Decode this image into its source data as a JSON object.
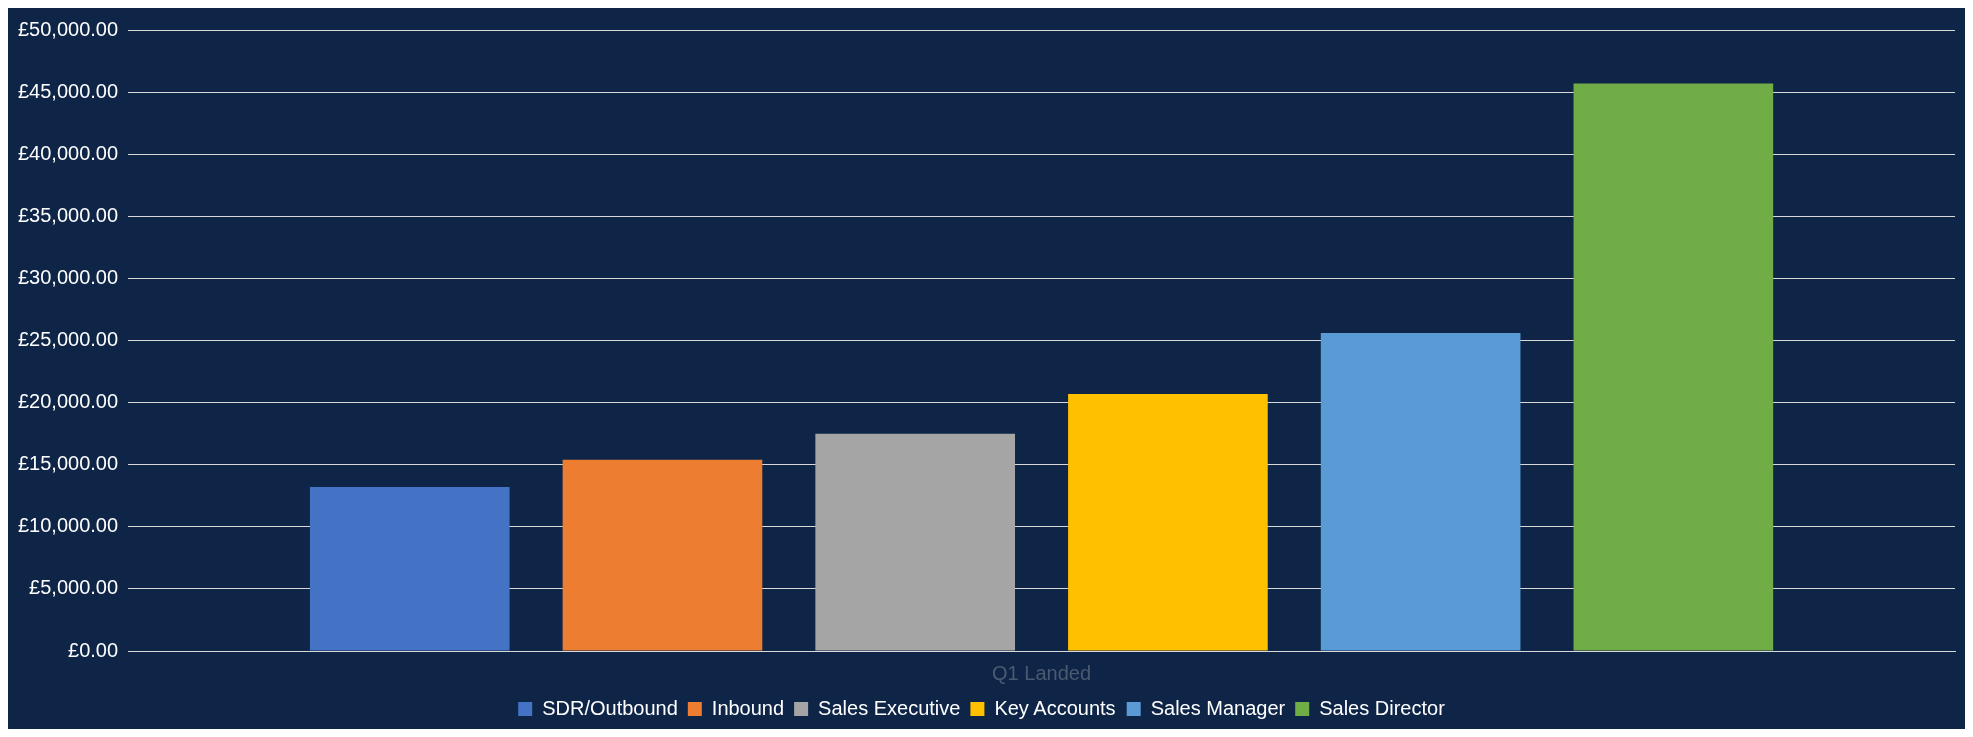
{
  "chart_data": {
    "type": "bar",
    "categories": [
      "Q1 Landed"
    ],
    "series": [
      {
        "name": "SDR/Outbound",
        "color": "#4472c4",
        "values": [
          13200
        ]
      },
      {
        "name": "Inbound",
        "color": "#ed7d31",
        "values": [
          15400
        ]
      },
      {
        "name": "Sales Executive",
        "color": "#a5a5a5",
        "values": [
          17500
        ]
      },
      {
        "name": "Key Accounts",
        "color": "#ffc000",
        "values": [
          20700
        ]
      },
      {
        "name": "Sales Manager",
        "color": "#5b9bd5",
        "values": [
          25600
        ]
      },
      {
        "name": "Sales Director",
        "color": "#70ad47",
        "values": [
          45700
        ]
      }
    ],
    "ylim": [
      0,
      50000
    ],
    "yticks": [
      {
        "value": 0,
        "label": "£0.00"
      },
      {
        "value": 5000,
        "label": "£5,000.00"
      },
      {
        "value": 10000,
        "label": "£10,000.00"
      },
      {
        "value": 15000,
        "label": "£15,000.00"
      },
      {
        "value": 20000,
        "label": "£20,000.00"
      },
      {
        "value": 25000,
        "label": "£25,000.00"
      },
      {
        "value": 30000,
        "label": "£30,000.00"
      },
      {
        "value": 35000,
        "label": "£35,000.00"
      },
      {
        "value": 40000,
        "label": "£40,000.00"
      },
      {
        "value": 45000,
        "label": "£45,000.00"
      },
      {
        "value": 50000,
        "label": "£50,000.00"
      }
    ],
    "grid": "y",
    "legend": "bottom"
  }
}
